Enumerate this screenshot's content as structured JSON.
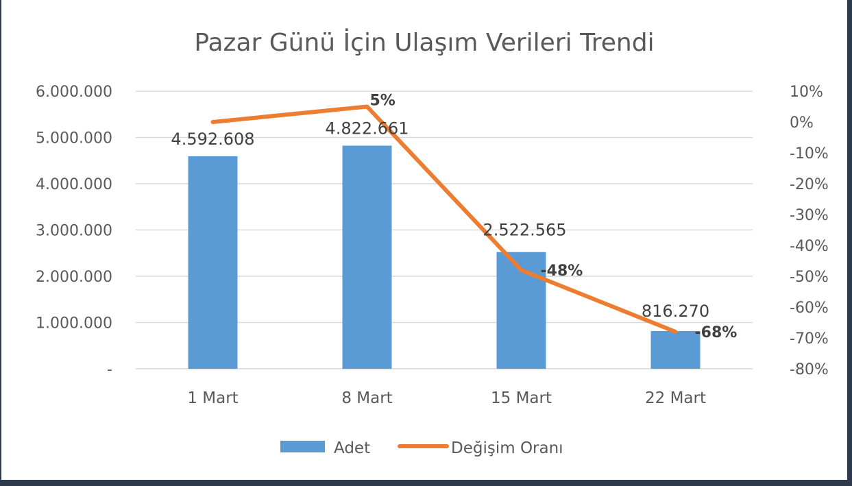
{
  "chart_data": {
    "type": "bar",
    "title": "Pazar Günü İçin Ulaşım Verileri Trendi",
    "categories": [
      "1 Mart",
      "8 Mart",
      "15 Mart",
      "22 Mart"
    ],
    "series": [
      {
        "name": "Adet",
        "type": "bar",
        "axis": "left",
        "color": "#5b9bd5",
        "values": [
          4592608,
          4822661,
          2522565,
          816270
        ],
        "labels": [
          "4.592.608",
          "4.822.661",
          "2.522.565",
          "816.270"
        ]
      },
      {
        "name": "Değişim Oranı",
        "type": "line",
        "axis": "right",
        "color": "#ed7d31",
        "values": [
          0,
          5,
          -48,
          -68
        ],
        "labels": [
          "",
          "5%",
          "-48%",
          "-68%"
        ]
      }
    ],
    "left_axis": {
      "ylim": [
        0,
        6000000
      ],
      "ticks": [
        0,
        1000000,
        2000000,
        3000000,
        4000000,
        5000000,
        6000000
      ],
      "tick_labels": [
        "-",
        "1.000.000",
        "2.000.000",
        "3.000.000",
        "4.000.000",
        "5.000.000",
        "6.000.000"
      ]
    },
    "right_axis": {
      "ylim": [
        -80,
        10
      ],
      "ticks": [
        10,
        0,
        -10,
        -20,
        -30,
        -40,
        -50,
        -60,
        -70,
        -80
      ],
      "tick_labels": [
        "10%",
        "0%",
        "-10%",
        "-20%",
        "-30%",
        "-40%",
        "-50%",
        "-60%",
        "-70%",
        "-80%"
      ]
    },
    "grid": true,
    "legend": "bottom"
  }
}
